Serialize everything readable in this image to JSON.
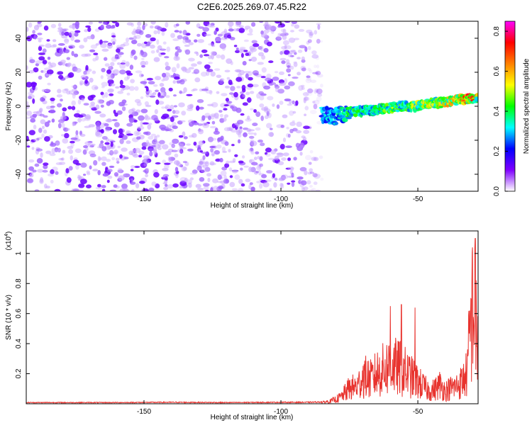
{
  "figure": {
    "title": "C2E6.2025.269.07.45.R22"
  },
  "chart_data": [
    {
      "type": "heatmap",
      "xlabel": "Height of straight line (km)",
      "ylabel": "Frequency (Hz)",
      "xlim": [
        -193,
        -28
      ],
      "ylim": [
        -50,
        50
      ],
      "x_ticks": [
        -150,
        -100,
        -50
      ],
      "y_ticks": [
        -40,
        -20,
        0,
        20,
        40
      ],
      "noise_region": {
        "x": [
          -193,
          -85
        ],
        "y": [
          -50,
          50
        ],
        "amplitude": [
          0.0,
          0.15
        ],
        "description_color": "#6a00ff"
      },
      "signal_ridge": {
        "x": [
          -85,
          -80,
          -75,
          -70,
          -65,
          -60,
          -55,
          -50,
          -45,
          -40,
          -35,
          -30,
          -28
        ],
        "y": [
          -5,
          -6,
          -3,
          -3,
          -2,
          -1,
          0,
          0,
          2,
          2,
          4,
          5,
          5
        ],
        "peak_amplitude": [
          0.25,
          0.3,
          0.4,
          0.42,
          0.4,
          0.5,
          0.45,
          0.55,
          0.55,
          0.6,
          0.7,
          0.8,
          0.6
        ]
      },
      "colorbar": {
        "label": "Normalized spectral amplitude",
        "range": [
          0.0,
          0.85
        ],
        "ticks": [
          "0.0",
          "0.2",
          "0.4",
          "0.6",
          "0.8"
        ],
        "colors": [
          "#ffffff",
          "#7f00ff",
          "#0000ff",
          "#00ffff",
          "#00ff00",
          "#ffff00",
          "#ff8000",
          "#ff0000",
          "#ff00ff"
        ]
      }
    },
    {
      "type": "line",
      "xlabel": "Height of straight line (km)",
      "ylabel": "SNR (10 * v/v)",
      "scale_note": "(x10",
      "scale_exponent": "4",
      "xlim": [
        -193,
        -28
      ],
      "ylim": [
        0.0,
        1.15
      ],
      "x_ticks": [
        -150,
        -100,
        -50
      ],
      "y_ticks": [
        "0.2",
        "0.4",
        "0.6",
        "0.8",
        "1"
      ],
      "series": [
        {
          "color": "#e8332e",
          "x": [
            -193,
            -180,
            -160,
            -140,
            -120,
            -100,
            -90,
            -85,
            -82,
            -80,
            -78,
            -75,
            -72,
            -70,
            -67,
            -65,
            -62,
            -60,
            -58,
            -56,
            -54,
            -52,
            -50,
            -48,
            -46,
            -44,
            -42,
            -40,
            -38,
            -36,
            -34,
            -32,
            -31,
            -30,
            -29,
            -28
          ],
          "y": [
            0.01,
            0.01,
            0.01,
            0.012,
            0.01,
            0.012,
            0.012,
            0.015,
            0.03,
            0.05,
            0.08,
            0.18,
            0.2,
            0.32,
            0.28,
            0.35,
            0.4,
            0.45,
            0.42,
            0.4,
            0.35,
            0.3,
            0.25,
            0.2,
            0.15,
            0.16,
            0.22,
            0.15,
            0.18,
            0.2,
            0.25,
            0.35,
            0.8,
            1.1,
            1.0,
            0.6
          ],
          "spikes": [
            {
              "x": -60,
              "y": 0.65
            },
            {
              "x": -56,
              "y": 0.66
            },
            {
              "x": -51,
              "y": 0.64
            },
            {
              "x": -30,
              "y": 1.04
            },
            {
              "x": -29,
              "y": 1.1
            }
          ]
        }
      ]
    }
  ]
}
